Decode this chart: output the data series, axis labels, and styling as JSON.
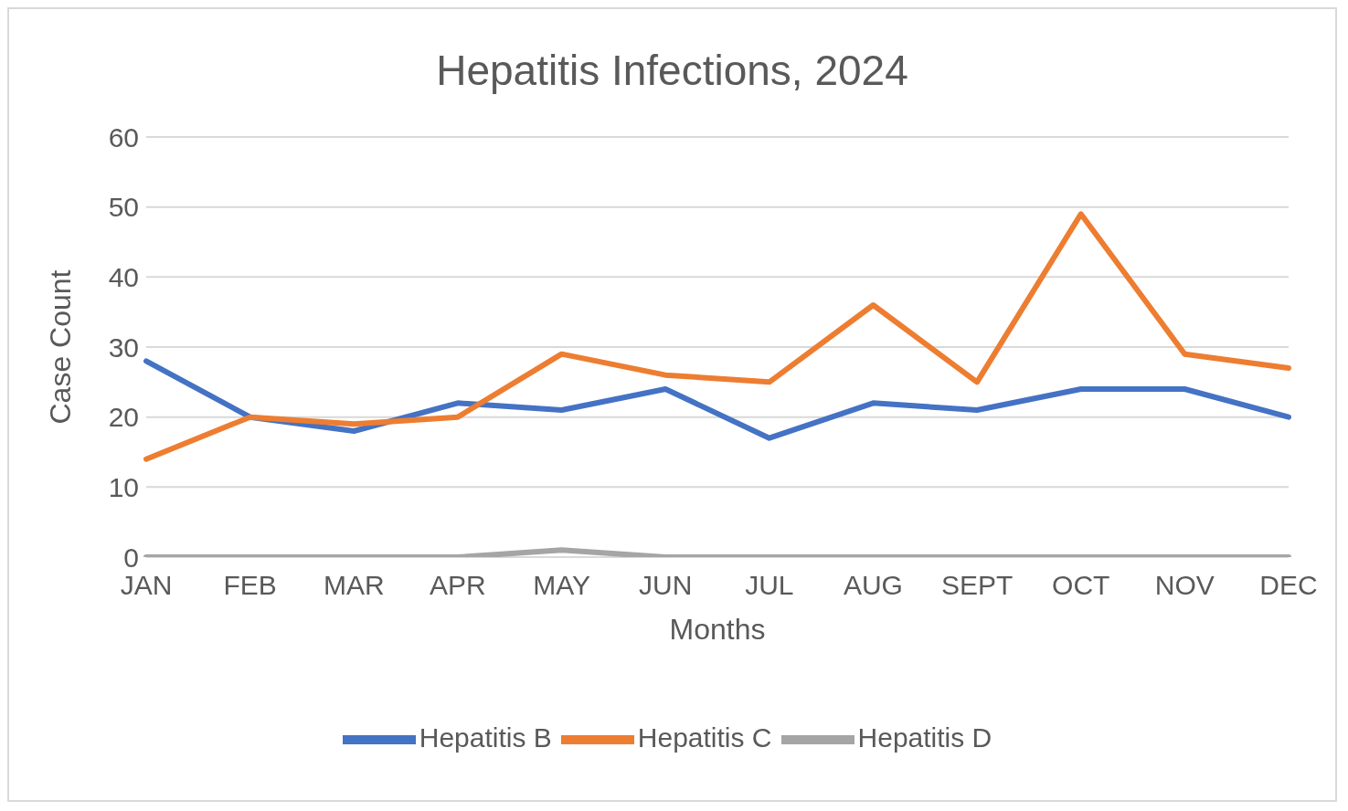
{
  "chart_data": {
    "type": "line",
    "title": "Hepatitis Infections, 2024",
    "xlabel": "Months",
    "ylabel": "Case Count",
    "categories": [
      "JAN",
      "FEB",
      "MAR",
      "APR",
      "MAY",
      "JUN",
      "JUL",
      "AUG",
      "SEPT",
      "OCT",
      "NOV",
      "DEC"
    ],
    "series": [
      {
        "name": "Hepatitis B",
        "color": "#4472c4",
        "values": [
          28,
          20,
          18,
          22,
          21,
          24,
          17,
          22,
          21,
          24,
          24,
          20
        ]
      },
      {
        "name": "Hepatitis C",
        "color": "#ed7d31",
        "values": [
          14,
          20,
          19,
          20,
          29,
          26,
          25,
          36,
          25,
          49,
          29,
          27
        ]
      },
      {
        "name": "Hepatitis D",
        "color": "#a5a5a5",
        "values": [
          0,
          0,
          0,
          0,
          1,
          0,
          0,
          0,
          0,
          0,
          0,
          0
        ]
      }
    ],
    "ylim": [
      0,
      60
    ],
    "yticks": [
      0,
      10,
      20,
      30,
      40,
      50,
      60
    ],
    "grid": "y",
    "legend": "bottom",
    "marker": "none",
    "line_style": "solid"
  }
}
